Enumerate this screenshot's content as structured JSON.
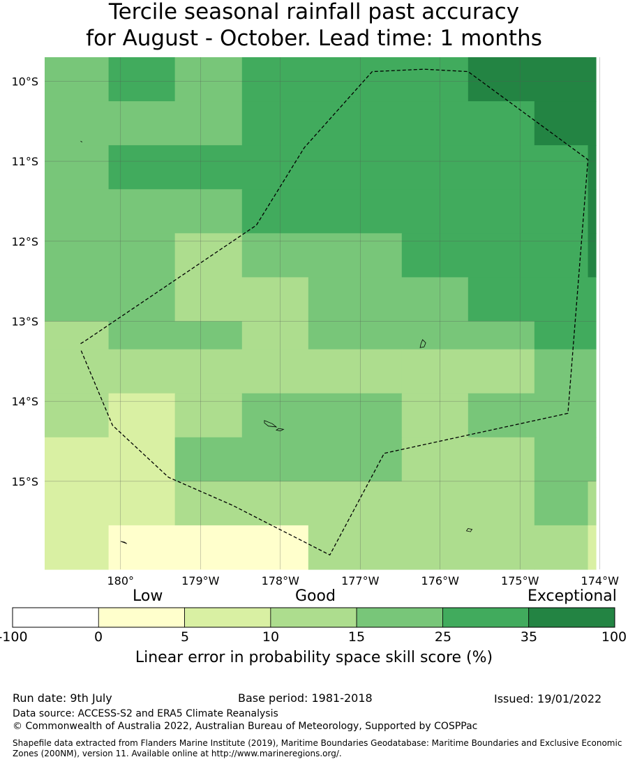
{
  "title": {
    "line1": "Tercile seasonal rainfall past accuracy",
    "line2": "for August - October. Lead time: 1 months"
  },
  "map": {
    "lat_labels": [
      "10°S",
      "11°S",
      "12°S",
      "13°S",
      "14°S",
      "15°S"
    ],
    "lon_labels": [
      "180°",
      "179°W",
      "178°W",
      "177°W",
      "176°W",
      "175°W",
      "174°W"
    ],
    "lon_range": [
      -180.95,
      -174.05
    ],
    "lat_range": [
      -9.7,
      -16.1
    ],
    "boundary_style": "dashed",
    "grid_cells": [
      {
        "lon": [
          -180.95,
          -180.15
        ],
        "lat": [
          -9.7,
          -10.25
        ],
        "class": 4
      },
      {
        "lon": [
          -180.15,
          -179.32
        ],
        "lat": [
          -9.7,
          -10.25
        ],
        "class": 5
      },
      {
        "lon": [
          -179.32,
          -178.48
        ],
        "lat": [
          -9.7,
          -10.25
        ],
        "class": 4
      },
      {
        "lon": [
          -178.48,
          -175.65
        ],
        "lat": [
          -9.7,
          -10.25
        ],
        "class": 5
      },
      {
        "lon": [
          -175.65,
          -174.05
        ],
        "lat": [
          -9.7,
          -10.25
        ],
        "class": 6
      },
      {
        "lon": [
          -180.95,
          -178.48
        ],
        "lat": [
          -10.25,
          -10.8
        ],
        "class": 4
      },
      {
        "lon": [
          -178.48,
          -174.82
        ],
        "lat": [
          -10.25,
          -10.8
        ],
        "class": 5
      },
      {
        "lon": [
          -174.82,
          -174.05
        ],
        "lat": [
          -10.25,
          -10.8
        ],
        "class": 6
      },
      {
        "lon": [
          -180.95,
          -180.15
        ],
        "lat": [
          -10.8,
          -11.35
        ],
        "class": 4
      },
      {
        "lon": [
          -180.15,
          -174.15
        ],
        "lat": [
          -10.8,
          -11.35
        ],
        "class": 5
      },
      {
        "lon": [
          -174.15,
          -174.05
        ],
        "lat": [
          -10.8,
          -11.35
        ],
        "class": 6
      },
      {
        "lon": [
          -180.95,
          -178.48
        ],
        "lat": [
          -11.35,
          -11.9
        ],
        "class": 4
      },
      {
        "lon": [
          -178.48,
          -174.15
        ],
        "lat": [
          -11.35,
          -11.9
        ],
        "class": 5
      },
      {
        "lon": [
          -174.15,
          -174.05
        ],
        "lat": [
          -11.35,
          -11.9
        ],
        "class": 6
      },
      {
        "lon": [
          -180.95,
          -179.32
        ],
        "lat": [
          -11.9,
          -12.45
        ],
        "class": 4
      },
      {
        "lon": [
          -179.32,
          -178.48
        ],
        "lat": [
          -11.9,
          -12.45
        ],
        "class": 3
      },
      {
        "lon": [
          -178.48,
          -176.48
        ],
        "lat": [
          -11.9,
          -12.45
        ],
        "class": 4
      },
      {
        "lon": [
          -176.48,
          -174.15
        ],
        "lat": [
          -11.9,
          -12.45
        ],
        "class": 5
      },
      {
        "lon": [
          -174.15,
          -174.05
        ],
        "lat": [
          -11.9,
          -12.45
        ],
        "class": 6
      },
      {
        "lon": [
          -180.95,
          -179.32
        ],
        "lat": [
          -12.45,
          -13.0
        ],
        "class": 4
      },
      {
        "lon": [
          -179.32,
          -177.65
        ],
        "lat": [
          -12.45,
          -13.0
        ],
        "class": 3
      },
      {
        "lon": [
          -177.65,
          -175.65
        ],
        "lat": [
          -12.45,
          -13.0
        ],
        "class": 4
      },
      {
        "lon": [
          -175.65,
          -174.05
        ],
        "lat": [
          -12.45,
          -13.0
        ],
        "class": 5
      },
      {
        "lon": [
          -180.95,
          -180.15
        ],
        "lat": [
          -13.0,
          -13.35
        ],
        "class": 3
      },
      {
        "lon": [
          -180.15,
          -178.48
        ],
        "lat": [
          -13.0,
          -13.35
        ],
        "class": 4
      },
      {
        "lon": [
          -178.48,
          -177.65
        ],
        "lat": [
          -13.0,
          -13.35
        ],
        "class": 3
      },
      {
        "lon": [
          -177.65,
          -174.82
        ],
        "lat": [
          -13.0,
          -13.35
        ],
        "class": 4
      },
      {
        "lon": [
          -174.82,
          -174.05
        ],
        "lat": [
          -13.0,
          -13.35
        ],
        "class": 5
      },
      {
        "lon": [
          -180.95,
          -176.48
        ],
        "lat": [
          -13.35,
          -13.9
        ],
        "class": 3
      },
      {
        "lon": [
          -176.48,
          -174.82
        ],
        "lat": [
          -13.35,
          -13.9
        ],
        "class": 3
      },
      {
        "lon": [
          -174.82,
          -174.05
        ],
        "lat": [
          -13.35,
          -13.9
        ],
        "class": 4
      },
      {
        "lon": [
          -180.95,
          -180.15
        ],
        "lat": [
          -13.9,
          -14.45
        ],
        "class": 3
      },
      {
        "lon": [
          -180.15,
          -179.32
        ],
        "lat": [
          -13.9,
          -14.45
        ],
        "class": 2
      },
      {
        "lon": [
          -179.32,
          -178.48
        ],
        "lat": [
          -13.9,
          -14.45
        ],
        "class": 3
      },
      {
        "lon": [
          -178.48,
          -176.48
        ],
        "lat": [
          -13.9,
          -14.45
        ],
        "class": 4
      },
      {
        "lon": [
          -176.48,
          -175.65
        ],
        "lat": [
          -13.9,
          -14.45
        ],
        "class": 3
      },
      {
        "lon": [
          -175.65,
          -174.05
        ],
        "lat": [
          -13.9,
          -14.45
        ],
        "class": 4
      },
      {
        "lon": [
          -180.95,
          -179.32
        ],
        "lat": [
          -14.45,
          -15.0
        ],
        "class": 2
      },
      {
        "lon": [
          -179.32,
          -176.48
        ],
        "lat": [
          -14.45,
          -15.0
        ],
        "class": 4
      },
      {
        "lon": [
          -176.48,
          -174.82
        ],
        "lat": [
          -14.45,
          -15.0
        ],
        "class": 3
      },
      {
        "lon": [
          -174.82,
          -174.05
        ],
        "lat": [
          -14.45,
          -15.0
        ],
        "class": 4
      },
      {
        "lon": [
          -180.95,
          -179.32
        ],
        "lat": [
          -15.0,
          -15.55
        ],
        "class": 2
      },
      {
        "lon": [
          -179.32,
          -174.82
        ],
        "lat": [
          -15.0,
          -15.55
        ],
        "class": 3
      },
      {
        "lon": [
          -174.82,
          -174.15
        ],
        "lat": [
          -15.0,
          -15.55
        ],
        "class": 4
      },
      {
        "lon": [
          -174.15,
          -174.05
        ],
        "lat": [
          -15.0,
          -15.55
        ],
        "class": 3
      },
      {
        "lon": [
          -180.95,
          -180.15
        ],
        "lat": [
          -15.55,
          -16.1
        ],
        "class": 2
      },
      {
        "lon": [
          -180.15,
          -177.65
        ],
        "lat": [
          -15.55,
          -16.1
        ],
        "class": 1
      },
      {
        "lon": [
          -177.65,
          -174.82
        ],
        "lat": [
          -15.55,
          -16.1
        ],
        "class": 3
      },
      {
        "lon": [
          -174.82,
          -174.15
        ],
        "lat": [
          -15.55,
          -16.1
        ],
        "class": 3
      },
      {
        "lon": [
          -174.15,
          -174.05
        ],
        "lat": [
          -15.55,
          -16.1
        ],
        "class": 2
      }
    ],
    "eez_boundary": [
      [
        -180.5,
        -13.28
      ],
      [
        -180.45,
        -13.25
      ],
      [
        -178.3,
        -11.8
      ],
      [
        -177.7,
        -10.83
      ],
      [
        -176.85,
        -9.88
      ],
      [
        -176.2,
        -9.85
      ],
      [
        -175.65,
        -9.88
      ],
      [
        -174.15,
        -10.98
      ],
      [
        -174.4,
        -14.15
      ],
      [
        -176.7,
        -14.65
      ],
      [
        -177.38,
        -15.92
      ],
      [
        -178.6,
        -15.3
      ],
      [
        -179.4,
        -14.95
      ],
      [
        -180.1,
        -14.3
      ],
      [
        -180.5,
        -13.35
      ]
    ],
    "islands": [
      {
        "name": "island-a",
        "points": [
          [
            -176.22,
            -13.23
          ],
          [
            -176.18,
            -13.27
          ],
          [
            -176.2,
            -13.32
          ],
          [
            -176.25,
            -13.33
          ],
          [
            -176.24,
            -13.28
          ]
        ]
      },
      {
        "name": "island-b",
        "points": [
          [
            -178.2,
            -14.24
          ],
          [
            -178.1,
            -14.28
          ],
          [
            -178.05,
            -14.32
          ],
          [
            -178.15,
            -14.31
          ],
          [
            -178.2,
            -14.27
          ]
        ]
      },
      {
        "name": "island-c",
        "points": [
          [
            -178.02,
            -14.34
          ],
          [
            -177.96,
            -14.35
          ],
          [
            -178.0,
            -14.37
          ],
          [
            -178.05,
            -14.36
          ]
        ]
      },
      {
        "name": "island-d",
        "points": [
          [
            -175.65,
            -15.59
          ],
          [
            -175.6,
            -15.6
          ],
          [
            -175.62,
            -15.63
          ],
          [
            -175.67,
            -15.62
          ]
        ]
      },
      {
        "name": "island-e",
        "points": [
          [
            -180.0,
            -15.75
          ],
          [
            -179.92,
            -15.78
          ],
          [
            -179.95,
            -15.76
          ]
        ]
      },
      {
        "name": "island-f",
        "points": [
          [
            -180.5,
            -10.75
          ],
          [
            -180.48,
            -10.76
          ]
        ]
      }
    ]
  },
  "colorbar": {
    "categories": [
      "Low",
      "Good",
      "Exceptional"
    ],
    "ticks": [
      "-100",
      "0",
      "5",
      "10",
      "15",
      "25",
      "35",
      "100"
    ],
    "colors": [
      "#ffffff",
      "#ffffcc",
      "#d9f0a3",
      "#addd8e",
      "#78c679",
      "#41ab5d",
      "#238443"
    ],
    "label": "Linear error in probability space skill score (%)"
  },
  "footer": {
    "run_date": "Run date: 9th July",
    "base_period": "Base period: 1981-2018",
    "issued": "Issued: 19/01/2022",
    "data_source": "Data source: ACCESS-S2 and ERA5 Climate Reanalysis",
    "copyright": "© Commonwealth of Australia 2022, Australian Bureau of Meteorology, Supported by COSPPac",
    "shapefile": "Shapefile data extracted from Flanders Marine Institute (2019), Maritime Boundaries Geodatabase: Maritime Boundaries and Exclusive Economic Zones (200NM), version 11. Available online at http://www.marineregions.org/."
  }
}
